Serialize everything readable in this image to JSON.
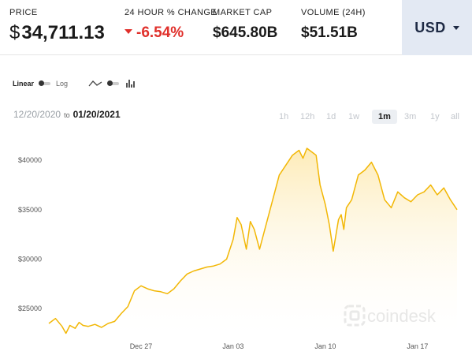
{
  "stats": {
    "price": {
      "label": "PRICE",
      "currency_symbol": "$",
      "value": "34,711.13"
    },
    "change": {
      "label": "24 HOUR % CHANGE",
      "value": "-6.54%"
    },
    "market_cap": {
      "label": "MARKET CAP",
      "value": "$645.80B"
    },
    "volume": {
      "label": "VOLUME (24H)",
      "value": "$51.51B"
    }
  },
  "currency": {
    "selected": "USD"
  },
  "scale": {
    "linear": "Linear",
    "log": "Log",
    "selected": "Linear"
  },
  "date_range": {
    "from": "12/20/2020",
    "to_word": "to",
    "to": "01/20/2021"
  },
  "ranges": [
    {
      "label": "1h"
    },
    {
      "label": "12h"
    },
    {
      "label": "1d"
    },
    {
      "label": "1w"
    },
    {
      "label": "1m",
      "active": true
    },
    {
      "label": "3m"
    },
    {
      "label": "1y"
    },
    {
      "label": "all"
    }
  ],
  "watermark": "coindesk",
  "colors": {
    "line": "#f2b705",
    "fill_top": "#fde9b0",
    "fill_bottom": "#ffffff",
    "negative": "#e0302b",
    "currency_bg": "#e3e9f3"
  },
  "chart_data": {
    "type": "area",
    "x_ticks": [
      "Dec 27",
      "Jan 03",
      "Jan 10",
      "Jan 17"
    ],
    "y_ticks": [
      "$25000",
      "$30000",
      "$35000",
      "$40000"
    ],
    "ylim": [
      22300,
      42000
    ],
    "xlim": [
      0,
      31
    ],
    "x_tick_positions": [
      7,
      14,
      21,
      28
    ],
    "y_tick_values": [
      25000,
      30000,
      35000,
      40000
    ],
    "series": [
      {
        "x": [
          0,
          0.5,
          1,
          1.3,
          1.6,
          2,
          2.3,
          2.6,
          3,
          3.5,
          4,
          4.5,
          5,
          5.5,
          6,
          6.5,
          7,
          7.5,
          8,
          8.5,
          9,
          9.5,
          10,
          10.5,
          11,
          11.5,
          12,
          12.5,
          13,
          13.5,
          14,
          14.3,
          14.6,
          15,
          15.3,
          15.6,
          16,
          16.3,
          16.6,
          17,
          17.5,
          18,
          18.5,
          19,
          19.3,
          19.6,
          20,
          20.3,
          20.6,
          21,
          21.3,
          21.6,
          22,
          22.2,
          22.4,
          22.6,
          23,
          23.5,
          24,
          24.5,
          25,
          25.5,
          26,
          26.5,
          27,
          27.5,
          28,
          28.5,
          29,
          29.5,
          30,
          30.5,
          31
        ],
        "y": [
          23500,
          24000,
          23200,
          22500,
          23300,
          23000,
          23600,
          23300,
          23200,
          23400,
          23100,
          23500,
          23700,
          24500,
          25200,
          26800,
          27300,
          27000,
          26800,
          26700,
          26500,
          27000,
          27800,
          28500,
          28800,
          29000,
          29200,
          29300,
          29500,
          30000,
          32000,
          34200,
          33500,
          31000,
          33800,
          33000,
          31000,
          32500,
          34000,
          36000,
          38500,
          39500,
          40500,
          41000,
          40200,
          41200,
          40800,
          40500,
          37500,
          35500,
          33500,
          30800,
          34000,
          34500,
          33000,
          35200,
          36000,
          38500,
          39000,
          39800,
          38500,
          36000,
          35200,
          36800,
          36200,
          35800,
          36500,
          36800,
          37500,
          36500,
          37200,
          36000,
          35000
        ]
      }
    ]
  }
}
